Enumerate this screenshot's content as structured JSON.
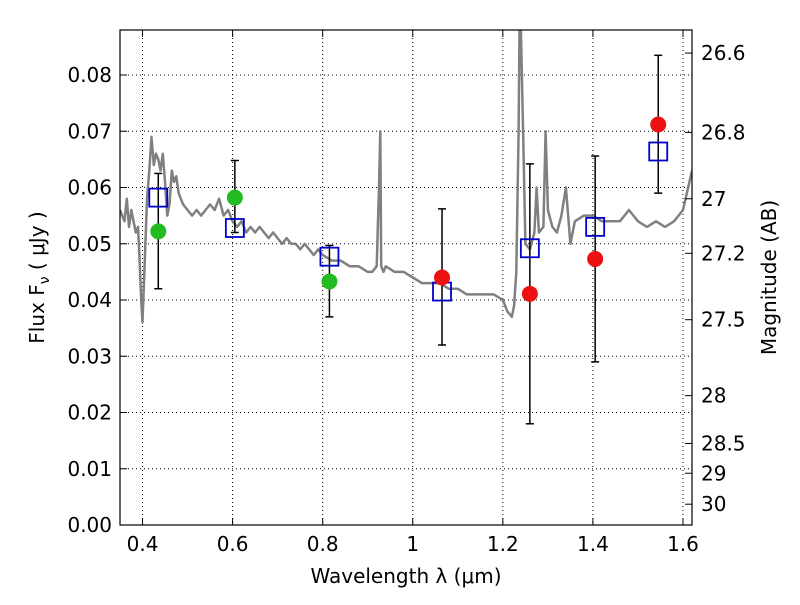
{
  "chart_data": {
    "type": "scatter",
    "xlabel": "Wavelength  λ (μm)",
    "ylabel": "Flux  F",
    "ylabel_sub": "ν",
    "ylabel_unit": "  ( μJy )",
    "y2label": "Magnitude (AB)",
    "xlim": [
      0.35,
      1.62
    ],
    "ylim": [
      0.0,
      0.088
    ],
    "grid": true,
    "x_ticks": [
      0.4,
      0.6,
      0.8,
      1.0,
      1.2,
      1.4,
      1.6
    ],
    "x_tick_labels": [
      "0.4",
      "0.6",
      "0.8",
      "1",
      "1.2",
      "1.4",
      "1.6"
    ],
    "y_ticks": [
      0.0,
      0.01,
      0.02,
      0.03,
      0.04,
      0.05,
      0.06,
      0.07,
      0.08
    ],
    "y_tick_labels": [
      "0.00",
      "0.01",
      "0.02",
      "0.03",
      "0.04",
      "0.05",
      "0.06",
      "0.07",
      "0.08"
    ],
    "y2_ticks": [
      {
        "label": "26.6",
        "flux": 0.0839
      },
      {
        "label": "26.8",
        "flux": 0.0698
      },
      {
        "label": "27",
        "flux": 0.058
      },
      {
        "label": "27.2",
        "flux": 0.0483
      },
      {
        "label": "27.5",
        "flux": 0.0365
      },
      {
        "label": "28",
        "flux": 0.023
      },
      {
        "label": "28.5",
        "flux": 0.0145
      },
      {
        "label": "29",
        "flux": 0.0092
      },
      {
        "label": "30",
        "flux": 0.0037
      }
    ],
    "series": [
      {
        "kind": "line",
        "color": "#808080",
        "x": [
          0.35,
          0.36,
          0.365,
          0.37,
          0.375,
          0.38,
          0.385,
          0.39,
          0.393,
          0.395,
          0.397,
          0.4,
          0.405,
          0.41,
          0.415,
          0.42,
          0.425,
          0.43,
          0.435,
          0.44,
          0.445,
          0.45,
          0.455,
          0.46,
          0.465,
          0.47,
          0.475,
          0.48,
          0.485,
          0.49,
          0.5,
          0.51,
          0.52,
          0.53,
          0.54,
          0.55,
          0.56,
          0.57,
          0.58,
          0.59,
          0.6,
          0.61,
          0.62,
          0.63,
          0.64,
          0.65,
          0.66,
          0.67,
          0.68,
          0.69,
          0.7,
          0.71,
          0.72,
          0.73,
          0.74,
          0.75,
          0.76,
          0.77,
          0.78,
          0.79,
          0.8,
          0.82,
          0.84,
          0.86,
          0.88,
          0.9,
          0.91,
          0.92,
          0.925,
          0.928,
          0.93,
          0.935,
          0.94,
          0.96,
          0.98,
          1.0,
          1.02,
          1.04,
          1.06,
          1.08,
          1.1,
          1.12,
          1.14,
          1.16,
          1.18,
          1.2,
          1.21,
          1.22,
          1.225,
          1.23,
          1.235,
          1.237,
          1.24,
          1.245,
          1.25,
          1.26,
          1.27,
          1.275,
          1.28,
          1.29,
          1.295,
          1.3,
          1.31,
          1.32,
          1.33,
          1.34,
          1.35,
          1.36,
          1.38,
          1.4,
          1.42,
          1.44,
          1.46,
          1.48,
          1.5,
          1.52,
          1.54,
          1.56,
          1.58,
          1.6,
          1.62
        ],
        "y": [
          0.056,
          0.054,
          0.058,
          0.053,
          0.056,
          0.054,
          0.052,
          0.053,
          0.048,
          0.044,
          0.04,
          0.036,
          0.047,
          0.058,
          0.063,
          0.069,
          0.064,
          0.066,
          0.065,
          0.063,
          0.066,
          0.061,
          0.055,
          0.057,
          0.063,
          0.061,
          0.062,
          0.059,
          0.058,
          0.057,
          0.056,
          0.055,
          0.056,
          0.055,
          0.056,
          0.057,
          0.056,
          0.058,
          0.055,
          0.056,
          0.054,
          0.053,
          0.054,
          0.052,
          0.053,
          0.052,
          0.053,
          0.052,
          0.051,
          0.052,
          0.051,
          0.05,
          0.051,
          0.05,
          0.05,
          0.049,
          0.05,
          0.049,
          0.048,
          0.049,
          0.048,
          0.047,
          0.047,
          0.046,
          0.046,
          0.045,
          0.045,
          0.046,
          0.06,
          0.07,
          0.046,
          0.045,
          0.046,
          0.045,
          0.045,
          0.044,
          0.043,
          0.043,
          0.043,
          0.042,
          0.042,
          0.041,
          0.041,
          0.041,
          0.041,
          0.04,
          0.038,
          0.037,
          0.039,
          0.045,
          0.07,
          0.088,
          0.088,
          0.07,
          0.05,
          0.049,
          0.052,
          0.06,
          0.052,
          0.053,
          0.07,
          0.056,
          0.053,
          0.052,
          0.055,
          0.06,
          0.05,
          0.054,
          0.055,
          0.055,
          0.054,
          0.054,
          0.054,
          0.056,
          0.054,
          0.053,
          0.054,
          0.053,
          0.054,
          0.056,
          0.063
        ]
      },
      {
        "kind": "errorbar",
        "color": "#000000",
        "x": [
          0.435,
          0.605,
          0.815,
          1.065,
          1.26,
          1.405,
          1.545
        ],
        "y_low": [
          0.042,
          0.052,
          0.037,
          0.032,
          0.018,
          0.029,
          0.059
        ],
        "y_high": [
          0.0625,
          0.0648,
          0.0497,
          0.0562,
          0.0642,
          0.0656,
          0.0835
        ]
      },
      {
        "kind": "marker",
        "marker": "square",
        "color": "#0000cc",
        "x": [
          0.435,
          0.605,
          0.815,
          1.065,
          1.26,
          1.405,
          1.545
        ],
        "y": [
          0.0582,
          0.0528,
          0.0477,
          0.0415,
          0.0492,
          0.053,
          0.0664
        ]
      },
      {
        "kind": "marker",
        "marker": "circle",
        "color": "#22bb22",
        "x": [
          0.435,
          0.605,
          0.815
        ],
        "y": [
          0.0522,
          0.0582,
          0.0433
        ]
      },
      {
        "kind": "marker",
        "marker": "circle",
        "color": "#ee1111",
        "x": [
          1.065,
          1.26,
          1.405,
          1.545
        ],
        "y": [
          0.044,
          0.0411,
          0.0473,
          0.0712
        ]
      }
    ]
  }
}
